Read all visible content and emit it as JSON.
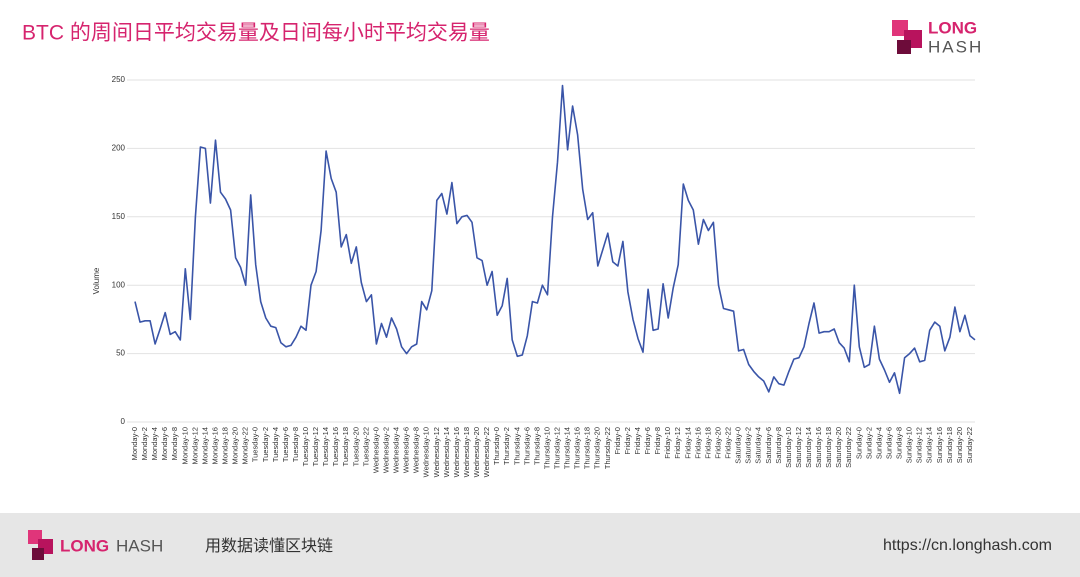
{
  "title": "BTC 的周间日平均交易量及日间每小时平均交易量",
  "header_logo": {
    "line1": "LONG",
    "line2": "HASH"
  },
  "footer": {
    "logo_long": "LONG",
    "logo_hash": "HASH",
    "slogan": "用数据读懂区块链",
    "url": "https://cn.longhash.com"
  },
  "chart_data": {
    "type": "line",
    "y_label": "Volume",
    "color": "#3a55a8",
    "grid": true,
    "ylim": [
      0,
      250
    ],
    "yticks": [
      0,
      50,
      100,
      150,
      200,
      250
    ],
    "categories": [
      "Monday-0",
      null,
      "Monday-2",
      null,
      "Monday-4",
      null,
      "Monday-6",
      null,
      "Monday-8",
      null,
      "Monday-10",
      null,
      "Monday-12",
      null,
      "Monday-14",
      null,
      "Monday-16",
      null,
      "Monday-18",
      null,
      "Monday-20",
      null,
      "Monday-22",
      null,
      "Tuesday-0",
      null,
      "Tuesday-2",
      null,
      "Tuesday-4",
      null,
      "Tuesday-6",
      null,
      "Tuesday-8",
      null,
      "Tuesday-10",
      null,
      "Tuesday-12",
      null,
      "Tuesday-14",
      null,
      "Tuesday-16",
      null,
      "Tuesday-18",
      null,
      "Tuesday-20",
      null,
      "Tuesday-22",
      null,
      "Wednesday-0",
      null,
      "Wednesday-2",
      null,
      "Wednesday-4",
      null,
      "Wednesday-6",
      null,
      "Wednesday-8",
      null,
      "Wednesday-10",
      null,
      "Wednesday-12",
      null,
      "Wednesday-14",
      null,
      "Wednesday-16",
      null,
      "Wednesday-18",
      null,
      "Wednesday-20",
      null,
      "Wednesday-22",
      null,
      "Thursday-0",
      null,
      "Thursday-2",
      null,
      "Thursday-4",
      null,
      "Thursday-6",
      null,
      "Thursday-8",
      null,
      "Thursday-10",
      null,
      "Thursday-12",
      null,
      "Thursday-14",
      null,
      "Thursday-16",
      null,
      "Thursday-18",
      null,
      "Thursday-20",
      null,
      "Thursday-22",
      null,
      "Friday-0",
      null,
      "Friday-2",
      null,
      "Friday-4",
      null,
      "Friday-6",
      null,
      "Friday-8",
      null,
      "Friday-10",
      null,
      "Friday-12",
      null,
      "Friday-14",
      null,
      "Friday-16",
      null,
      "Friday-18",
      null,
      "Friday-20",
      null,
      "Friday-22",
      null,
      "Saturday-0",
      null,
      "Saturday-2",
      null,
      "Saturday-4",
      null,
      "Saturday-6",
      null,
      "Saturday-8",
      null,
      "Saturday-10",
      null,
      "Saturday-12",
      null,
      "Saturday-14",
      null,
      "Saturday-16",
      null,
      "Saturday-18",
      null,
      "Saturday-20",
      null,
      "Saturday-22",
      null,
      "Sunday-0",
      null,
      "Sunday-2",
      null,
      "Sunday-4",
      null,
      "Sunday-6",
      null,
      "Sunday-8",
      null,
      "Sunday-10",
      null,
      "Sunday-12",
      null,
      "Sunday-14",
      null,
      "Sunday-16",
      null,
      "Sunday-18",
      null,
      "Sunday-20",
      null,
      "Sunday-22",
      null
    ],
    "values": [
      88,
      73,
      74,
      74,
      57,
      68,
      80,
      64,
      66,
      60,
      112,
      75,
      150,
      201,
      200,
      160,
      206,
      168,
      163,
      155,
      120,
      113,
      100,
      166,
      115,
      88,
      76,
      70,
      69,
      58,
      55,
      56,
      62,
      70,
      67,
      100,
      110,
      140,
      198,
      178,
      168,
      128,
      137,
      116,
      128,
      102,
      88,
      93,
      57,
      72,
      62,
      76,
      68,
      55,
      50,
      55,
      57,
      88,
      82,
      96,
      162,
      167,
      152,
      175,
      145,
      150,
      151,
      146,
      120,
      118,
      100,
      110,
      78,
      85,
      105,
      60,
      48,
      49,
      63,
      88,
      87,
      100,
      93,
      150,
      190,
      246,
      199,
      231,
      210,
      170,
      148,
      153,
      114,
      126,
      138,
      117,
      114,
      132,
      95,
      75,
      61,
      51,
      97,
      67,
      68,
      101,
      76,
      98,
      115,
      174,
      162,
      155,
      130,
      148,
      140,
      146,
      100,
      83,
      82,
      81,
      52,
      53,
      42,
      37,
      33,
      30,
      22,
      33,
      28,
      27,
      37,
      46,
      47,
      55,
      72,
      87,
      65,
      66,
      66,
      68,
      58,
      54,
      44,
      100,
      55,
      40,
      42,
      70,
      46,
      38,
      29,
      36,
      21,
      47,
      50,
      54,
      44,
      45,
      67,
      73,
      70,
      52,
      62,
      84,
      66,
      78,
      63,
      60
    ]
  }
}
